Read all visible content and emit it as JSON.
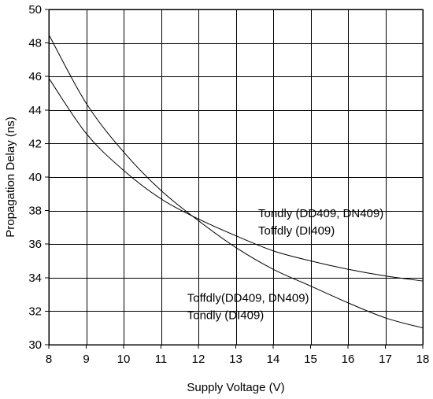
{
  "chart_data": {
    "type": "line",
    "title": "",
    "xlabel": "Supply Voltage (V)",
    "ylabel": "Propagation Delay (ns)",
    "xlim": [
      8,
      18
    ],
    "ylim": [
      30,
      50
    ],
    "x_ticks": [
      8,
      9,
      10,
      11,
      12,
      13,
      14,
      15,
      16,
      17,
      18
    ],
    "y_ticks": [
      30,
      32,
      34,
      36,
      38,
      40,
      42,
      44,
      46,
      48,
      50
    ],
    "grid": true,
    "series": [
      {
        "x": [
          8,
          9,
          10,
          11,
          12,
          13,
          14,
          15,
          16,
          17,
          18
        ],
        "values": [
          48.5,
          44.4,
          41.5,
          39.2,
          37.4,
          35.8,
          34.5,
          33.5,
          32.5,
          31.6,
          31.0
        ]
      },
      {
        "x": [
          8,
          9,
          10,
          11,
          12,
          13,
          14,
          15,
          16,
          17,
          18
        ],
        "values": [
          45.9,
          42.6,
          40.4,
          38.7,
          37.5,
          36.5,
          35.6,
          35.0,
          34.5,
          34.1,
          33.8
        ]
      }
    ],
    "annotations": [
      {
        "lines": [
          "Tondly (DD409, DN409)",
          "Toffdly (DI409)"
        ],
        "anchor": [
          13.6,
          37.6
        ]
      },
      {
        "lines": [
          "Toffdly(DD409, DN409)",
          "Tondly (DI409)"
        ],
        "anchor": [
          11.7,
          32.55
        ]
      }
    ]
  }
}
